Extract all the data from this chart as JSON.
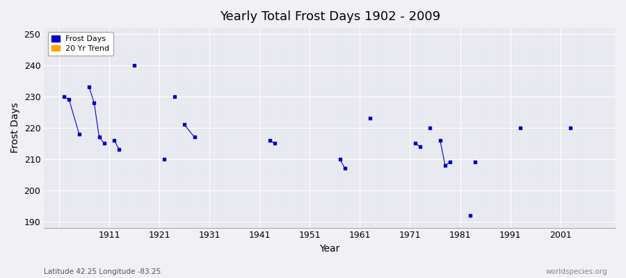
{
  "title": "Yearly Total Frost Days 1902 - 2009",
  "xlabel": "Year",
  "ylabel": "Frost Days",
  "xlim": [
    1898,
    2012
  ],
  "ylim": [
    188,
    252
  ],
  "yticks": [
    190,
    200,
    210,
    220,
    230,
    240,
    250
  ],
  "xticks": [
    1901,
    1911,
    1921,
    1931,
    1941,
    1951,
    1961,
    1971,
    1981,
    1991,
    2001
  ],
  "xticklabels": [
    "",
    "1911",
    "1921",
    "1931",
    "1941",
    "1951",
    "1961",
    "1971",
    "1981",
    "1991",
    "2001"
  ],
  "bg_color": "#f0f0f5",
  "plot_bg_color": "#e8e8f0",
  "frost_color": "#0000cc",
  "trend_color": "#ffa500",
  "connected_groups": [
    [
      [
        1902,
        230
      ],
      [
        1903,
        229
      ],
      [
        1905,
        218
      ]
    ],
    [
      [
        1907,
        233
      ],
      [
        1908,
        228
      ],
      [
        1909,
        217
      ],
      [
        1910,
        215
      ]
    ],
    [
      [
        1912,
        216
      ],
      [
        1913,
        213
      ]
    ],
    [
      [
        1926,
        221
      ],
      [
        1928,
        217
      ]
    ],
    [
      [
        1943,
        216
      ],
      [
        1944,
        215
      ]
    ],
    [
      [
        1957,
        210
      ],
      [
        1958,
        207
      ]
    ],
    [
      [
        1972,
        215
      ],
      [
        1973,
        214
      ]
    ],
    [
      [
        1977,
        216
      ],
      [
        1978,
        208
      ],
      [
        1979,
        209
      ]
    ]
  ],
  "single_points": [
    [
      1916,
      240
    ],
    [
      1922,
      210
    ],
    [
      1924,
      230
    ],
    [
      1963,
      223
    ],
    [
      1975,
      220
    ],
    [
      1983,
      192
    ],
    [
      1984,
      209
    ],
    [
      1993,
      220
    ],
    [
      2003,
      220
    ]
  ],
  "footnote_left": "Latitude 42.25 Longitude -83.25",
  "footnote_right": "worldspecies.org",
  "grid_color": "#ffffff",
  "legend_frost_label": "Frost Days",
  "legend_trend_label": "20 Yr Trend"
}
